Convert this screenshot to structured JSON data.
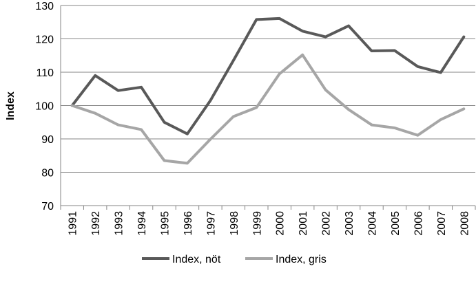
{
  "chart_data": {
    "type": "line",
    "title": "",
    "xlabel": "",
    "ylabel": "Index",
    "ylim": [
      70,
      130
    ],
    "yticks": [
      70,
      80,
      90,
      100,
      110,
      120,
      130
    ],
    "grid": true,
    "legend_position": "bottom",
    "categories": [
      "1991",
      "1992",
      "1993",
      "1994",
      "1995",
      "1996",
      "1997",
      "1998",
      "1999",
      "2000",
      "2001",
      "2002",
      "2003",
      "2004",
      "2005",
      "2006",
      "2007",
      "2008"
    ],
    "series": [
      {
        "name": "Index, nöt",
        "color": "#595959",
        "values": [
          100,
          109,
          104.5,
          105.5,
          95,
          91.5,
          101.5,
          113.5,
          125.8,
          126.1,
          122.3,
          120.6,
          123.9,
          116.4,
          116.5,
          111.7,
          109.9,
          120.6
        ]
      },
      {
        "name": "Index, gris",
        "color": "#a6a6a6",
        "values": [
          100,
          97.7,
          94.2,
          92.8,
          83.5,
          82.7,
          89.9,
          96.7,
          99.4,
          109.5,
          115.2,
          104.7,
          98.8,
          94.2,
          93.3,
          91.1,
          95.8,
          99
        ]
      }
    ]
  }
}
